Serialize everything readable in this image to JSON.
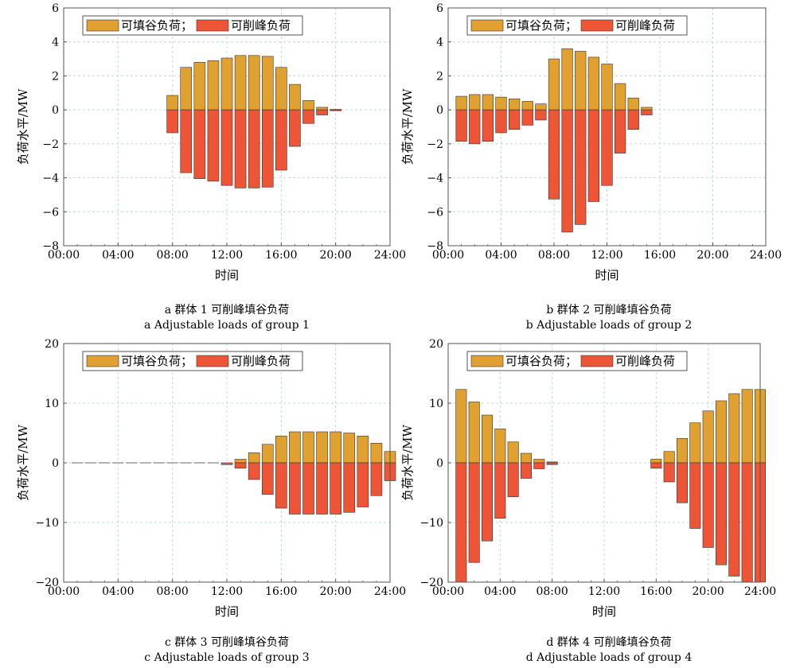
{
  "colors": {
    "fill": "#E0A130",
    "peak": "#EE5436",
    "grid": "#b8dcdc",
    "axis": "#555555"
  },
  "chart_data": [
    {
      "type": "bar",
      "xlabel": "时间",
      "ylabel": "负荷水平/MW",
      "xlim": [
        0,
        24
      ],
      "ylim": [
        -8,
        6
      ],
      "xticks": [
        "00:00",
        "04:00",
        "08:00",
        "12:00",
        "16:00",
        "20:00",
        "24:00"
      ],
      "yticks": [
        -8,
        -6,
        -4,
        -2,
        0,
        2,
        4,
        6
      ],
      "grid": true,
      "legend_position": "top-left",
      "caption_cn": "a  群体 1 可削峰填谷负荷",
      "caption_en": "a  Adjustable loads of group 1",
      "x": [
        1,
        2,
        3,
        4,
        5,
        6,
        7,
        8,
        9,
        10,
        11,
        12,
        13,
        14,
        15,
        16,
        17,
        18,
        19,
        20,
        21,
        22,
        23,
        24
      ],
      "series": [
        {
          "name": "可填谷负荷；",
          "values": [
            0,
            0,
            0,
            0,
            0,
            0,
            0,
            0.85,
            2.5,
            2.8,
            2.9,
            3.05,
            3.2,
            3.2,
            3.15,
            2.5,
            1.5,
            0.55,
            0.15,
            0.03,
            0,
            0,
            0,
            0
          ]
        },
        {
          "name": "可削峰负荷",
          "values": [
            0,
            0,
            0,
            0,
            0,
            0,
            0,
            -1.35,
            -3.7,
            -4.05,
            -4.2,
            -4.45,
            -4.6,
            -4.6,
            -4.55,
            -3.55,
            -2.15,
            -0.8,
            -0.3,
            -0.05,
            0,
            0,
            0,
            0
          ]
        }
      ]
    },
    {
      "type": "bar",
      "xlabel": "时间",
      "ylabel": "负荷水平/MW",
      "xlim": [
        0,
        24
      ],
      "ylim": [
        -8,
        6
      ],
      "xticks": [
        "00:00",
        "04:00",
        "08:00",
        "12:00",
        "16:00",
        "20:00",
        "24:00"
      ],
      "yticks": [
        -8,
        -6,
        -4,
        -2,
        0,
        2,
        4,
        6
      ],
      "grid": true,
      "legend_position": "top-left",
      "caption_cn": "b  群体 2 可削峰填谷负荷",
      "caption_en": "b  Adjustable loads of group 2",
      "x": [
        1,
        2,
        3,
        4,
        5,
        6,
        7,
        8,
        9,
        10,
        11,
        12,
        13,
        14,
        15,
        16,
        17,
        18,
        19,
        20,
        21,
        22,
        23,
        24
      ],
      "series": [
        {
          "name": "可填谷负荷；",
          "values": [
            0.8,
            0.9,
            0.9,
            0.75,
            0.65,
            0.5,
            0.35,
            3.0,
            3.6,
            3.45,
            3.1,
            2.7,
            1.55,
            0.7,
            0.15,
            0,
            0,
            0,
            0,
            0,
            0,
            0,
            0,
            0
          ]
        },
        {
          "name": "可削峰负荷",
          "values": [
            -1.85,
            -2.0,
            -1.85,
            -1.35,
            -1.15,
            -0.9,
            -0.6,
            -5.25,
            -7.2,
            -6.75,
            -5.4,
            -4.45,
            -2.55,
            -1.15,
            -0.3,
            0,
            0,
            0,
            0,
            0,
            0,
            0,
            0,
            0
          ]
        }
      ]
    },
    {
      "type": "bar",
      "xlabel": "时间",
      "ylabel": "负荷水平/MW",
      "xlim": [
        0,
        24
      ],
      "ylim": [
        -20,
        20
      ],
      "xticks": [
        "00:00",
        "04:00",
        "08:00",
        "12:00",
        "16:00",
        "20:00",
        "24:00"
      ],
      "yticks": [
        -20,
        -10,
        0,
        10,
        20
      ],
      "grid": true,
      "legend_position": "top-left",
      "caption_cn": "c  群体 3 可削峰填谷负荷",
      "caption_en": "c  Adjustable loads of group 3",
      "x": [
        1,
        2,
        3,
        4,
        5,
        6,
        7,
        8,
        9,
        10,
        11,
        12,
        13,
        14,
        15,
        16,
        17,
        18,
        19,
        20,
        21,
        22,
        23,
        24
      ],
      "series": [
        {
          "name": "可填谷负荷；",
          "values": [
            0,
            0,
            0,
            0,
            0,
            0,
            0,
            0,
            0,
            0,
            0,
            0,
            0.6,
            1.7,
            3.1,
            4.5,
            5.2,
            5.2,
            5.2,
            5.2,
            5.0,
            4.5,
            3.3,
            1.9
          ]
        },
        {
          "name": "可削峰负荷",
          "values": [
            0,
            0,
            0,
            0,
            0,
            0,
            0,
            0,
            0,
            0,
            0,
            -0.3,
            -0.9,
            -2.8,
            -5.3,
            -7.6,
            -8.6,
            -8.6,
            -8.6,
            -8.6,
            -8.3,
            -7.4,
            -5.5,
            -3.0
          ]
        }
      ]
    },
    {
      "type": "bar",
      "xlabel": "时间",
      "ylabel": "负荷水平/MW",
      "xlim": [
        0,
        24
      ],
      "ylim": [
        -20,
        20
      ],
      "xticks": [
        "00:00",
        "04:00",
        "08:00",
        "12:00",
        "16:00",
        "20:00",
        "24:00"
      ],
      "yticks": [
        -20,
        -10,
        0,
        10,
        20
      ],
      "grid": true,
      "legend_position": "top-left",
      "caption_cn": "d  群体 4 可削峰填谷负荷",
      "caption_en": "d  Adjustable loads of group 4",
      "x": [
        1,
        2,
        3,
        4,
        5,
        6,
        7,
        8,
        9,
        10,
        11,
        12,
        13,
        14,
        15,
        16,
        17,
        18,
        19,
        20,
        21,
        22,
        23,
        24
      ],
      "series": [
        {
          "name": "可填谷负荷；",
          "values": [
            12.3,
            10.2,
            8.0,
            5.7,
            3.5,
            1.6,
            0.6,
            0.15,
            0,
            0,
            0,
            0,
            0,
            0,
            0,
            0.6,
            1.9,
            4.1,
            6.7,
            8.7,
            10.4,
            11.6,
            12.3,
            12.3
          ]
        },
        {
          "name": "可削峰负荷",
          "values": [
            -20,
            -16.7,
            -13.1,
            -9.3,
            -5.7,
            -2.6,
            -1.0,
            -0.3,
            0,
            0,
            0,
            0,
            0,
            0,
            0,
            -0.9,
            -3.2,
            -6.7,
            -11.0,
            -14.2,
            -17.1,
            -19.0,
            -20,
            -20
          ]
        }
      ]
    }
  ]
}
